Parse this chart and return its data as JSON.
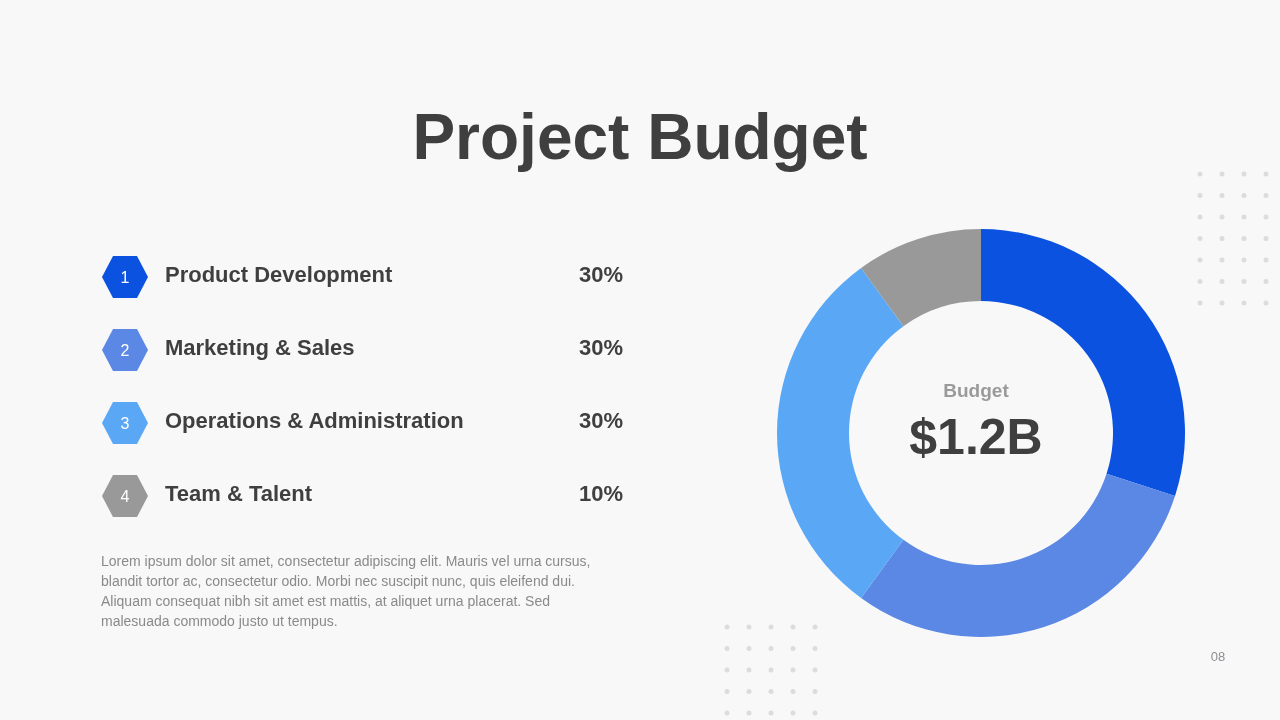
{
  "chart_data": {
    "type": "donut",
    "title": "Project Budget",
    "categories": [
      "Product Development",
      "Marketing & Sales",
      "Operations & Administration",
      "Team & Talent"
    ],
    "values": [
      30,
      30,
      30,
      10
    ],
    "value_labels": [
      "30%",
      "30%",
      "30%",
      "10%"
    ],
    "colors": [
      "#0b52e0",
      "#5b88e4",
      "#5aa8f5",
      "#999999"
    ],
    "legend": "left",
    "annotations": [
      "Budget",
      "$1.2B",
      "Lorem ipsum dolor sit amet, consectetur adipiscing elit. Mauris vel urna cursus, blandit tortor ac, consectetur odio. Morbi nec suscipit nunc, quis eleifend dui. Aliquam consequat nibh sit amet est mattis, at aliquet urna placerat. Sed malesuada commodo justo ut tempus.",
      "08",
      "1",
      "2",
      "3",
      "4"
    ]
  }
}
